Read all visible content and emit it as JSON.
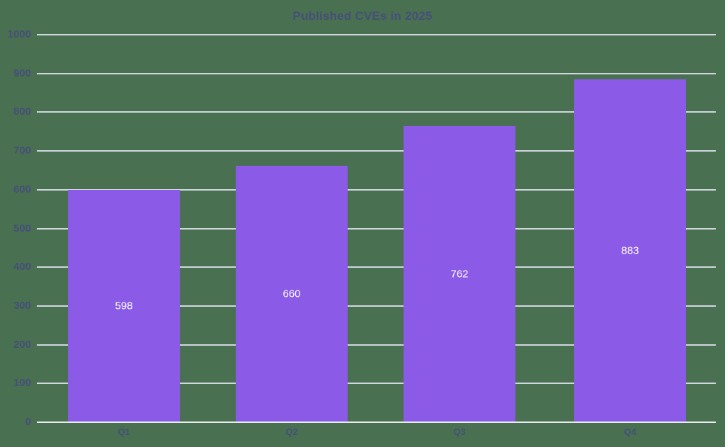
{
  "title": "Published CVEs in 2025",
  "chart_data": {
    "type": "bar",
    "title": "Published CVEs in 2025",
    "categories": [
      "Q1",
      "Q2",
      "Q3",
      "Q4"
    ],
    "values": [
      598,
      660,
      762,
      883
    ],
    "xlabel": "",
    "ylabel": "",
    "ylim": [
      0,
      1000
    ],
    "yticks": [
      0,
      100,
      200,
      300,
      400,
      500,
      600,
      700,
      800,
      900,
      1000
    ],
    "grid": true,
    "legend": false,
    "value_labels": [
      "598",
      "660",
      "762",
      "883"
    ],
    "colors": {
      "background": "#4A7052",
      "bar": "#8B5AE6",
      "gridline": "#D0D7DE",
      "zero_line": "#E9ECEF",
      "axis_text": "#454F78",
      "title_text": "#454F78",
      "value_label_text": "#FFFFFF"
    }
  }
}
